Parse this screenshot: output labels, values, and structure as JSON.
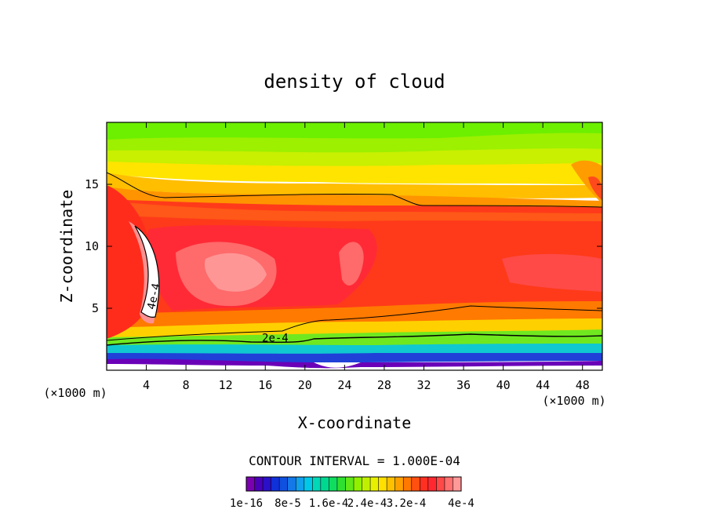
{
  "chart_data": {
    "type": "contour",
    "title": "density of cloud",
    "xlabel": "X-coordinate",
    "ylabel": "Z-coordinate",
    "x_unit_left": "(×1000 m)",
    "x_unit_right": "(×1000 m)",
    "xlim": [
      0,
      50
    ],
    "ylim": [
      0,
      20
    ],
    "xticks": [
      4,
      8,
      12,
      16,
      20,
      24,
      28,
      32,
      36,
      40,
      44,
      48
    ],
    "yticks": [
      5,
      10,
      15
    ],
    "contour_interval_text": "CONTOUR INTERVAL = 1.000E-04",
    "contour_labels": [
      {
        "text": "2e-4",
        "x": 17.0,
        "z": 2.3
      },
      {
        "text": "4e-4",
        "x": 5.1,
        "z": 5.9
      }
    ],
    "colorbar": {
      "colors": [
        "#7a00b0",
        "#4a00b8",
        "#2a10c8",
        "#1030d8",
        "#1050e0",
        "#1478e8",
        "#10a0ec",
        "#00c8e8",
        "#00d8b8",
        "#00d890",
        "#10dc60",
        "#30e030",
        "#60e818",
        "#90f000",
        "#c0f000",
        "#e8f000",
        "#ffe000",
        "#ffc000",
        "#ffa000",
        "#ff7800",
        "#ff5010",
        "#ff3020",
        "#ff2830",
        "#ff4848",
        "#ff7070",
        "#ff9898"
      ],
      "tick_labels": [
        "1e-16",
        "8e-5",
        "1.6e-4",
        "2.4e-4",
        "3.2e-4",
        "4e-4"
      ]
    }
  }
}
